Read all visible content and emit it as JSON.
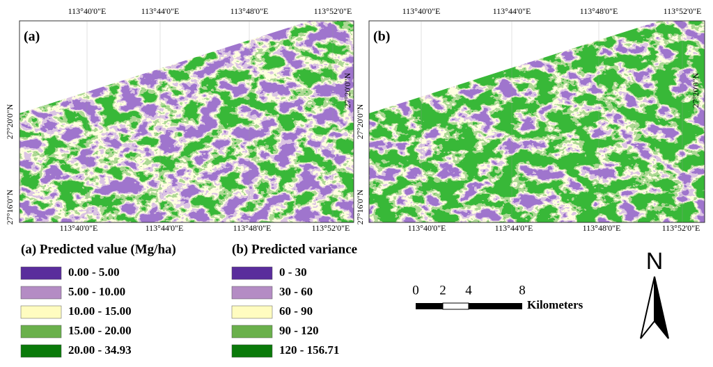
{
  "panels": [
    {
      "label": "(a)",
      "top_ticks": [
        "113°40'0\"E",
        "113°44'0\"E",
        "113°48'0\"E",
        "113°52'0\"E"
      ],
      "bottom_ticks": [
        "113°40'0\"E",
        "113°44'0\"E",
        "113°48'0\"E",
        "113°52'0\"E"
      ],
      "left_ticks": [
        "27°20'0\"N",
        "27°16'0\"N"
      ],
      "right_ticks": [
        "27°20'0\"N"
      ]
    },
    {
      "label": "(b)",
      "top_ticks": [
        "113°40'0\"E",
        "113°44'0\"E",
        "113°48'0\"E",
        "113°52'0\"E"
      ],
      "bottom_ticks": [
        "113°40'0\"E",
        "113°44'0\"E",
        "113°48'0\"E",
        "113°52'0\"E"
      ],
      "left_ticks": [
        "27°20'0\"N",
        "27°16'0\"N"
      ],
      "right_ticks": [
        "27°20'0\"N"
      ]
    }
  ],
  "legends": [
    {
      "title": "(a) Predicted value (Mg/ha)",
      "items": [
        {
          "label": "0.00 - 5.00",
          "color": "#5a2d9c"
        },
        {
          "label": "5.00 - 10.00",
          "color": "#b48cc4"
        },
        {
          "label": "10.00 - 15.00",
          "color": "#fffcc0"
        },
        {
          "label": "15.00 - 20.00",
          "color": "#6ab04c"
        },
        {
          "label": "20.00 - 34.93",
          "color": "#0a7a0a"
        }
      ]
    },
    {
      "title": "(b) Predicted variance",
      "items": [
        {
          "label": "0 - 30",
          "color": "#5a2d9c"
        },
        {
          "label": "30 - 60",
          "color": "#b48cc4"
        },
        {
          "label": "60 - 90",
          "color": "#fffcc0"
        },
        {
          "label": "90 - 120",
          "color": "#6ab04c"
        },
        {
          "label": "120 - 156.71",
          "color": "#0a7a0a"
        }
      ]
    }
  ],
  "scale_bar": {
    "ticks": [
      "0",
      "2",
      "4",
      "8"
    ],
    "unit": "Kilometers"
  },
  "north": "N"
}
